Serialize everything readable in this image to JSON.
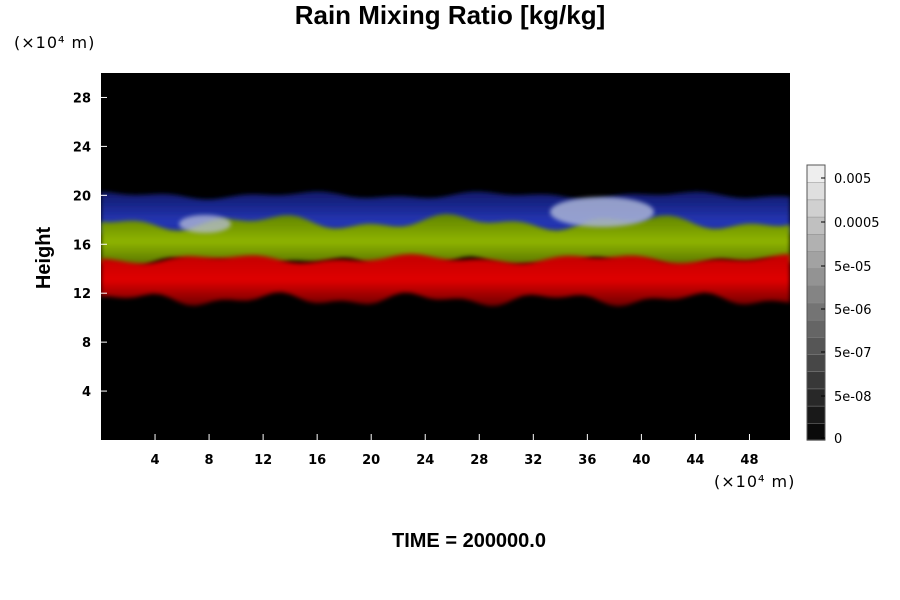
{
  "chart_data": {
    "type": "heatmap",
    "title": "Rain Mixing Ratio [kg/kg]",
    "ylabel": "Height",
    "xlabel": "",
    "x_unit": "(×10⁴ m)",
    "y_unit": "(×10⁴ m)",
    "xlim": [
      0,
      51
    ],
    "ylim": [
      0,
      30
    ],
    "x_ticks": [
      4,
      8,
      12,
      16,
      20,
      24,
      28,
      32,
      36,
      40,
      44,
      48
    ],
    "y_ticks": [
      4,
      8,
      12,
      16,
      20,
      24,
      28
    ],
    "footer": "TIME = 200000.0",
    "colorbar": {
      "scale": "log",
      "labels": [
        "0.005",
        "0.0005",
        "5e-05",
        "5e-06",
        "5e-07",
        "5e-08",
        "0"
      ],
      "levels": 16
    },
    "bands": {
      "red": {
        "name": "red band",
        "y_range": [
          11.5,
          14.8
        ],
        "color": "#d40000"
      },
      "green": {
        "name": "green band",
        "y_range": [
          14.5,
          17.8
        ],
        "color": "#7ea800"
      },
      "blue": {
        "name": "blue band",
        "y_range": [
          16.5,
          20.0
        ],
        "color": "#1f2fa8"
      }
    },
    "grid": false,
    "background_color": "#000000"
  }
}
